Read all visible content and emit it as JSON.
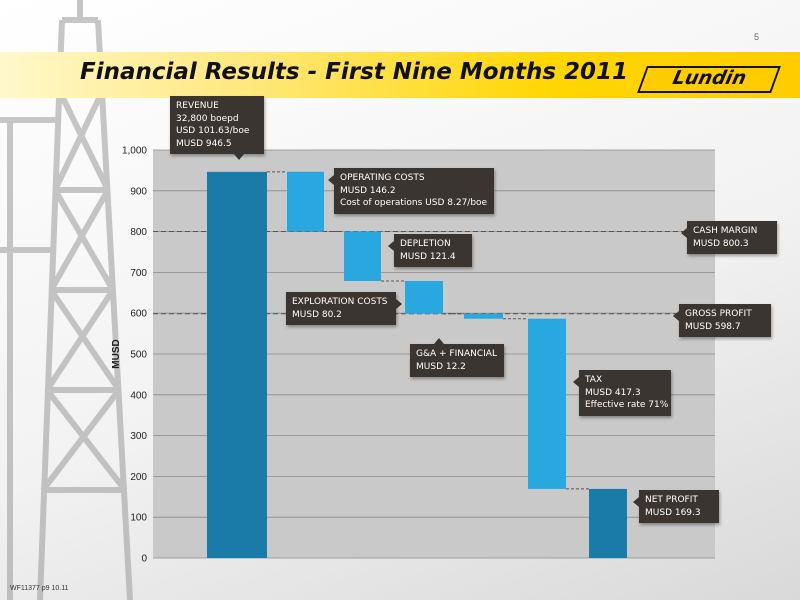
{
  "page_number": "5",
  "slide_title": "Financial Results - First Nine Months 2011",
  "logo_text": "Lundin",
  "footer_code": "WF11377 p9 10.11",
  "colors": {
    "dark_bar": "#1a7aa8",
    "light_bar": "#29a8e0",
    "callout": "#3b3532",
    "title_band": "#ffcc00"
  },
  "chart_data": {
    "type": "waterfall",
    "ylabel": "MUSD",
    "ylim": [
      0,
      1000
    ],
    "yticks": [
      "0",
      "100",
      "200",
      "300",
      "400",
      "500",
      "600",
      "700",
      "800",
      "900",
      "1,000"
    ],
    "grid": true,
    "steps": [
      {
        "kind": "total",
        "start": 0,
        "end": 946.5,
        "value": 946.5,
        "callout": {
          "title": "REVENUE",
          "lines": [
            "32,800 boepd",
            "USD 101.63/boe",
            "MUSD 946.5"
          ]
        }
      },
      {
        "kind": "decrease",
        "start": 946.5,
        "end": 800.3,
        "value": 146.2,
        "callout": {
          "title": "OPERATING COSTS",
          "lines": [
            "MUSD 146.2",
            "Cost of operations USD 8.27/boe"
          ]
        }
      },
      {
        "kind": "decrease",
        "start": 800.3,
        "end": 678.9,
        "value": 121.4,
        "callout": {
          "title": "DEPLETION",
          "lines": [
            "MUSD 121.4"
          ]
        }
      },
      {
        "kind": "decrease",
        "start": 678.9,
        "end": 598.7,
        "value": 80.2,
        "callout": {
          "title": "EXPLORATION COSTS",
          "lines": [
            "MUSD  80.2"
          ]
        }
      },
      {
        "kind": "decrease",
        "start": 598.7,
        "end": 586.5,
        "value": 12.2,
        "callout": {
          "title": "G&A + FINANCIAL",
          "lines": [
            "MUSD 12.2"
          ]
        }
      },
      {
        "kind": "decrease",
        "start": 586.5,
        "end": 169.3,
        "value": 417.3,
        "callout": {
          "title": "TAX",
          "lines": [
            "MUSD 417.3",
            "Effective rate 71%"
          ]
        }
      },
      {
        "kind": "total",
        "start": 169.3,
        "end": 0,
        "value": 169.3,
        "callout": {
          "title": "NET PROFIT",
          "lines": [
            "MUSD 169.3"
          ]
        }
      }
    ],
    "reference_lines": [
      {
        "value": 800.3,
        "callout": {
          "title": "CASH MARGIN",
          "lines": [
            "MUSD 800.3"
          ]
        }
      },
      {
        "value": 598.7,
        "callout": {
          "title": "GROSS PROFIT",
          "lines": [
            "MUSD 598.7"
          ]
        }
      }
    ]
  }
}
